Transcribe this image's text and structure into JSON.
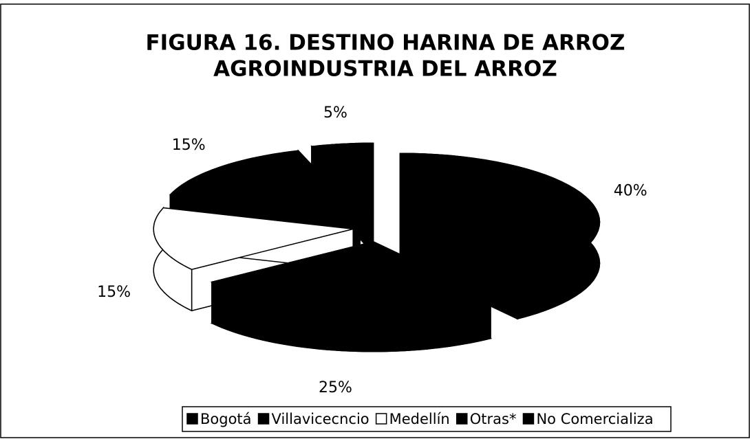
{
  "chart_data": {
    "type": "pie",
    "title": [
      "FIGURA 16. DESTINO HARINA DE ARROZ",
      "AGROINDUSTRIA DEL ARROZ"
    ],
    "categories": [
      "Bogotá",
      "Villavicecncio",
      "Medellín",
      "Otras*",
      "No Comercializa"
    ],
    "values": [
      40,
      25,
      15,
      15,
      5
    ],
    "value_labels": [
      "40%",
      "25%",
      "15%",
      "15%",
      "5%"
    ],
    "colors": [
      "#000000",
      "#000000",
      "#ffffff",
      "#000000",
      "#000000"
    ],
    "legend": "bottom"
  }
}
